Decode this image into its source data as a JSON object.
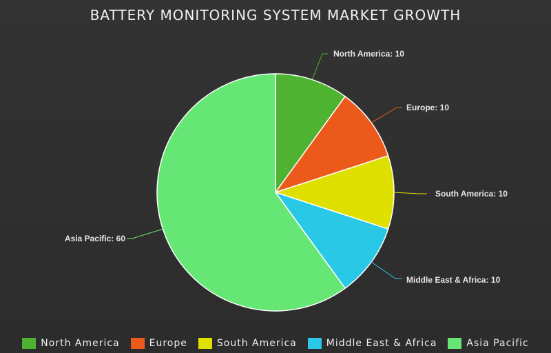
{
  "chart_data": {
    "type": "pie",
    "title": "BATTERY MONITORING SYSTEM MARKET GROWTH",
    "slices": [
      {
        "name": "North America",
        "value": 10,
        "label": "North America: 10",
        "color": "#4db330",
        "legend": "North America"
      },
      {
        "name": "Europe",
        "value": 10,
        "label": "Europe: 10",
        "color": "#ec5a1b",
        "legend": "Europe"
      },
      {
        "name": "South America",
        "value": 10,
        "label": "South America: 10",
        "color": "#e0e000",
        "legend": "South America"
      },
      {
        "name": "Middle East & Africa",
        "value": 10,
        "label": "Middle East & Africa: 10",
        "color": "#28c8e6",
        "legend": "Middle East & Africa"
      },
      {
        "name": "Asia Pacific",
        "value": 60,
        "label": "Asia Pacific: 60",
        "color": "#66e675",
        "legend": "Asia Pacific"
      }
    ],
    "legend_position": "bottom"
  }
}
